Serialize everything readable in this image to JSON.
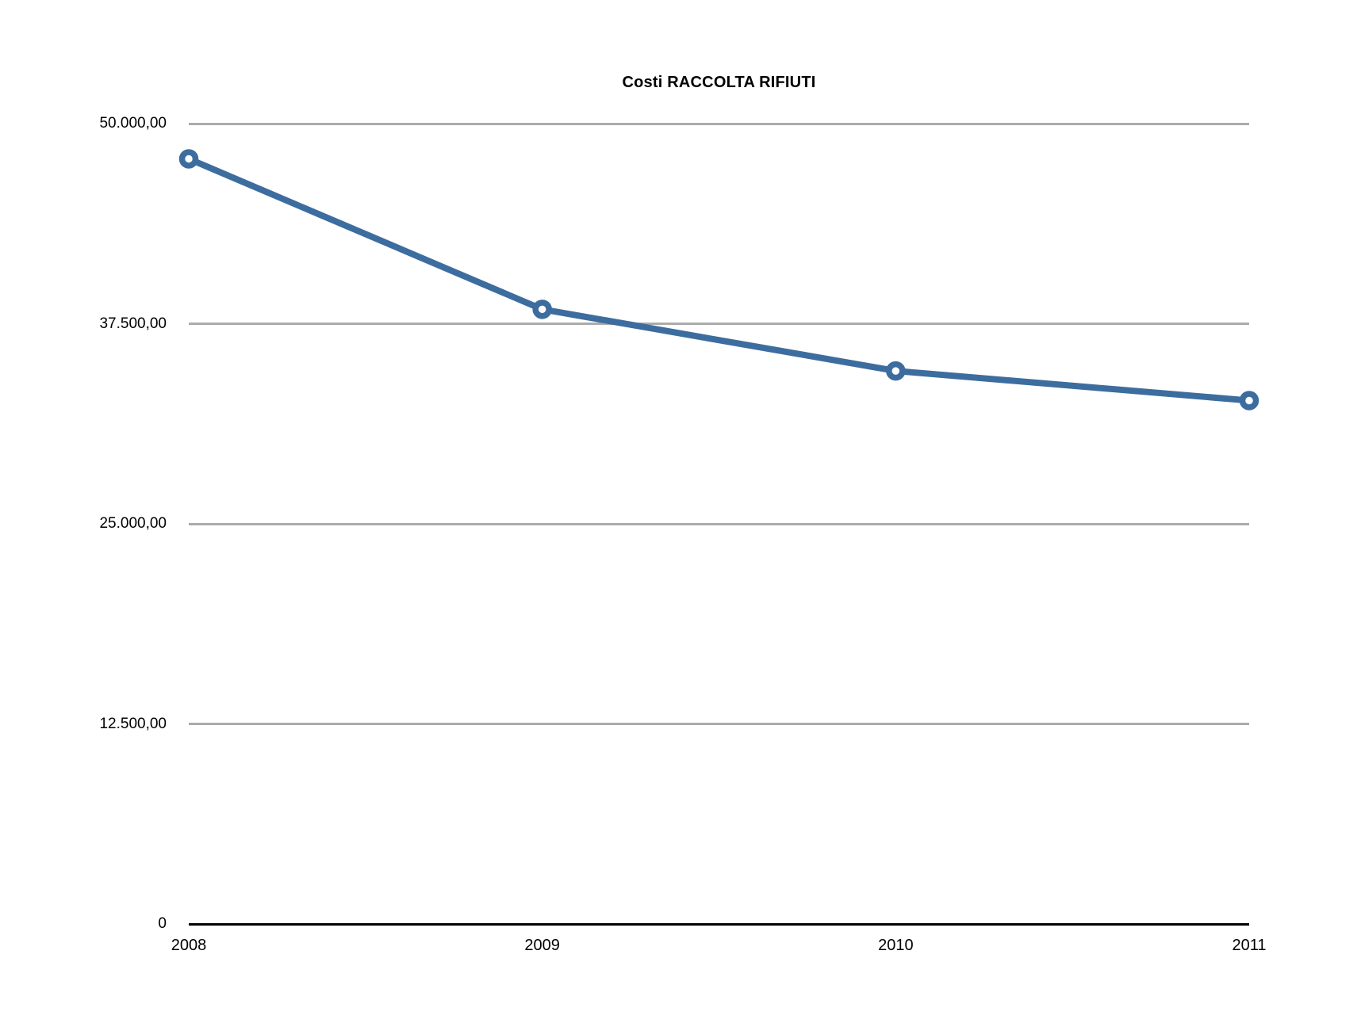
{
  "page": {
    "background_color": "#ffffff"
  },
  "chart_data": {
    "type": "line",
    "title": "Costi RACCOLTA RIFIUTI",
    "categories": [
      "2008",
      "2009",
      "2010",
      "2011"
    ],
    "series": [
      {
        "name": "Costi RACCOLTA RIFIUTI",
        "values": [
          47800,
          38400,
          34550,
          32700
        ]
      }
    ],
    "xlabel": "",
    "ylabel": "",
    "ylim": [
      0,
      50000
    ],
    "y_ticks": [
      {
        "value": 50000,
        "label": "50.000,00"
      },
      {
        "value": 37500,
        "label": "37.500,00"
      },
      {
        "value": 25000,
        "label": "25.000,00"
      },
      {
        "value": 12500,
        "label": "12.500,00"
      },
      {
        "value": 0,
        "label": "0"
      }
    ],
    "grid": true,
    "legend": "none",
    "marker_style": "ring",
    "colors": {
      "line": "#3D6D9E",
      "marker_fill": "#ffffff",
      "gridline": "#ABABAB",
      "axis": "#000000",
      "text": "#000000"
    }
  }
}
